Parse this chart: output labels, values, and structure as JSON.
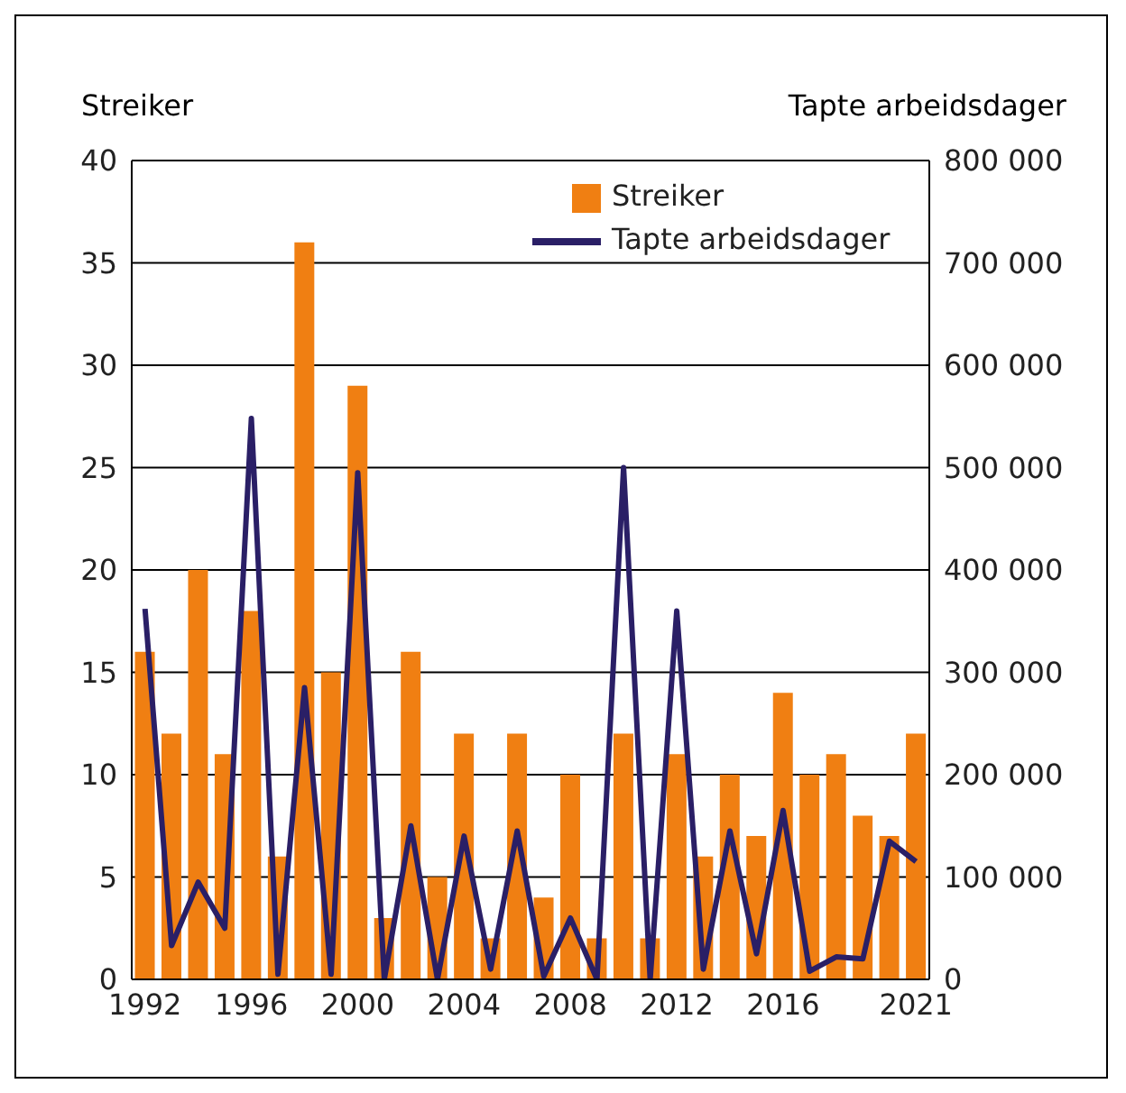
{
  "chart_data": {
    "type": "bar",
    "ylabel": "Streiker",
    "y2label": "Tapte arbeidsdager",
    "categories": [
      "1992",
      null,
      null,
      null,
      "1996",
      null,
      null,
      null,
      "2000",
      null,
      null,
      null,
      "2004",
      null,
      null,
      null,
      "2008",
      null,
      null,
      null,
      "2012",
      null,
      null,
      null,
      "2016",
      null,
      null,
      null,
      null,
      "2021"
    ],
    "series": [
      {
        "name": "Streiker",
        "color": "#f07f12",
        "values": [
          16,
          12,
          20,
          11,
          18,
          6,
          36,
          15,
          29,
          3,
          16,
          5,
          12,
          2,
          12,
          4,
          10,
          2,
          12,
          2,
          11,
          6,
          10,
          7,
          14,
          10,
          11,
          8,
          7,
          12
        ]
      },
      {
        "name": "Tapte arbeidsdager",
        "type": "line",
        "axis": "y2",
        "color": "#2a1f66",
        "values": [
          362000,
          33000,
          95000,
          50000,
          548000,
          5000,
          285000,
          5000,
          495000,
          0,
          150000,
          0,
          140000,
          10000,
          145000,
          3000,
          60000,
          0,
          500000,
          0,
          360000,
          10000,
          145000,
          25000,
          165000,
          8000,
          22000,
          20000,
          135000,
          115000
        ]
      }
    ],
    "ylim": [
      0,
      40
    ],
    "yticks": [
      0,
      5,
      10,
      15,
      20,
      25,
      30,
      35,
      40
    ],
    "y2lim": [
      0,
      800000
    ],
    "y2ticks": [
      0,
      {
        "value": 100000,
        "label": "100 000"
      },
      {
        "value": 200000,
        "label": "200 000"
      },
      {
        "value": 300000,
        "label": "300 000"
      },
      {
        "value": 400000,
        "label": "400 000"
      },
      {
        "value": 500000,
        "label": "500 000"
      },
      {
        "value": 600000,
        "label": "600 000"
      },
      {
        "value": 700000,
        "label": "700 000"
      },
      {
        "value": 800000,
        "label": "800 000"
      }
    ],
    "grid": "y",
    "legend": "top right",
    "marker": "none",
    "line_style": "solid"
  }
}
